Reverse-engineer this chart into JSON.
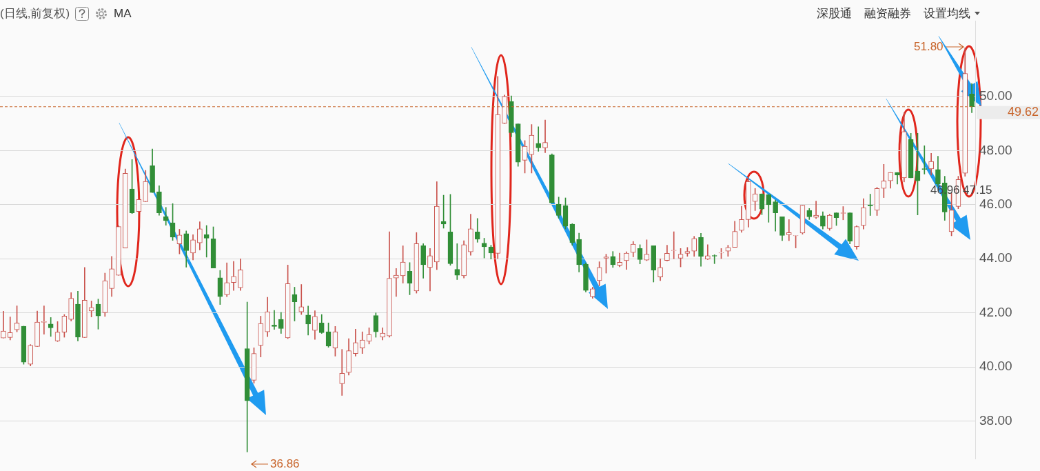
{
  "chart_data": {
    "type": "candlestick",
    "title": "(日线,前复权)",
    "categories": [
      null,
      null,
      null,
      null,
      null,
      null,
      null,
      null,
      null,
      null,
      null,
      null,
      null,
      null,
      null,
      null,
      null,
      null,
      null,
      null,
      null,
      null,
      null,
      null,
      null,
      null,
      null,
      null,
      null,
      null,
      null,
      null,
      null,
      null,
      null,
      null,
      null,
      null,
      null,
      null,
      null,
      null,
      null,
      null,
      null,
      null,
      null,
      null,
      null,
      null,
      null,
      null,
      null,
      null,
      null,
      null,
      null,
      null,
      null,
      null,
      null,
      null,
      null,
      null,
      null,
      null,
      null,
      null,
      null,
      null,
      null,
      null,
      null,
      null,
      null,
      null,
      null,
      null,
      null,
      null,
      null,
      null,
      null,
      null,
      null,
      null,
      null,
      null,
      null,
      null,
      null,
      null,
      null,
      null,
      null,
      null,
      null,
      null,
      null,
      null,
      null,
      null,
      null,
      null,
      null,
      null,
      null,
      null,
      null,
      null,
      null,
      null,
      null,
      null,
      null,
      null,
      null,
      null,
      null,
      null,
      null,
      null,
      null,
      null,
      null,
      null,
      null,
      null,
      null,
      null,
      null,
      null,
      null,
      null,
      null,
      null,
      null,
      null,
      null,
      null,
      null,
      null,
      null,
      null
    ],
    "ohlc": [
      [
        41.07,
        42.06,
        41.07,
        41.33
      ],
      [
        41.09,
        41.85,
        41.0,
        41.27
      ],
      [
        41.38,
        42.26,
        41.3,
        41.63
      ],
      [
        41.51,
        41.51,
        40.1,
        40.18
      ],
      [
        40.1,
        40.83,
        40.04,
        40.8
      ],
      [
        40.76,
        42.07,
        40.76,
        41.66
      ],
      [
        41.65,
        42.26,
        41.21,
        41.68
      ],
      [
        41.59,
        41.83,
        41.13,
        41.45
      ],
      [
        40.96,
        41.68,
        40.94,
        41.29
      ],
      [
        41.29,
        41.94,
        41.1,
        41.88
      ],
      [
        41.76,
        42.75,
        41.7,
        42.54
      ],
      [
        42.32,
        42.8,
        40.96,
        41.1
      ],
      [
        41.09,
        43.68,
        41.09,
        42.47
      ],
      [
        42.07,
        42.44,
        41.85,
        42.2
      ],
      [
        42.32,
        42.51,
        41.4,
        41.89
      ],
      [
        42.01,
        43.47,
        41.87,
        43.19
      ],
      [
        42.9,
        44.09,
        42.61,
        43.63
      ],
      [
        43.39,
        45.23,
        43.39,
        45.19
      ],
      [
        44.4,
        47.32,
        44.4,
        47.16
      ],
      [
        46.58,
        47.67,
        45.67,
        45.7
      ],
      [
        45.75,
        46.19,
        45.75,
        46.19
      ],
      [
        46.11,
        47.27,
        46.11,
        46.86
      ],
      [
        47.44,
        48.06,
        46.45,
        46.45
      ],
      [
        46.48,
        46.7,
        45.61,
        45.7
      ],
      [
        45.56,
        45.9,
        45.24,
        45.41
      ],
      [
        45.33,
        46.04,
        44.68,
        44.8
      ],
      [
        44.55,
        45.09,
        44.18,
        44.88
      ],
      [
        44.93,
        45.03,
        43.69,
        44.3
      ],
      [
        44.21,
        44.89,
        43.96,
        44.7
      ],
      [
        44.59,
        45.37,
        44.33,
        45.11
      ],
      [
        44.89,
        45.23,
        44.06,
        44.76
      ],
      [
        44.74,
        45.18,
        43.66,
        43.66
      ],
      [
        43.3,
        43.57,
        42.31,
        42.6
      ],
      [
        42.67,
        43.85,
        42.6,
        43.12
      ],
      [
        43.12,
        43.9,
        42.83,
        43.35
      ],
      [
        42.93,
        44.0,
        42.83,
        43.59
      ],
      [
        40.68,
        42.4,
        36.86,
        38.75
      ],
      [
        39.51,
        40.71,
        39.4,
        40.5
      ],
      [
        40.8,
        41.88,
        40.37,
        41.61
      ],
      [
        41.3,
        42.58,
        41.12,
        42.04
      ],
      [
        41.55,
        42.09,
        41.39,
        41.5
      ],
      [
        41.76,
        42.02,
        41.24,
        41.42
      ],
      [
        41.08,
        43.77,
        41.05,
        43.08
      ],
      [
        42.68,
        42.95,
        41.7,
        42.41
      ],
      [
        42.04,
        43.05,
        41.94,
        42.23
      ],
      [
        41.92,
        42.25,
        41.18,
        41.59
      ],
      [
        41.35,
        42.08,
        41.02,
        41.87
      ],
      [
        41.63,
        41.94,
        41.24,
        41.27
      ],
      [
        41.3,
        41.63,
        40.73,
        40.77
      ],
      [
        40.7,
        41.5,
        40.4,
        41.3
      ],
      [
        39.38,
        40.65,
        38.95,
        39.77
      ],
      [
        39.8,
        41.05,
        39.7,
        40.6
      ],
      [
        40.5,
        41.4,
        40.4,
        40.9
      ],
      [
        40.7,
        41.3,
        40.5,
        41.0
      ],
      [
        40.95,
        41.45,
        40.85,
        41.2
      ],
      [
        41.9,
        42.0,
        41.1,
        41.3
      ],
      [
        41.1,
        41.45,
        41.0,
        41.25
      ],
      [
        41.15,
        45.0,
        41.1,
        43.28
      ],
      [
        43.29,
        43.64,
        42.61,
        43.39
      ],
      [
        43.37,
        44.48,
        43.1,
        43.88
      ],
      [
        43.54,
        43.86,
        42.67,
        43.1
      ],
      [
        42.81,
        44.97,
        42.73,
        44.56
      ],
      [
        44.48,
        44.56,
        43.28,
        43.78
      ],
      [
        43.68,
        44.38,
        42.81,
        44.11
      ],
      [
        43.88,
        46.85,
        43.6,
        45.94
      ],
      [
        45.38,
        46.35,
        45.13,
        45.28
      ],
      [
        44.99,
        46.38,
        43.76,
        43.82
      ],
      [
        43.61,
        44.56,
        43.23,
        43.39
      ],
      [
        43.37,
        44.67,
        43.29,
        44.52
      ],
      [
        44.26,
        45.65,
        44.13,
        45.11
      ],
      [
        44.99,
        45.49,
        44.61,
        44.72
      ],
      [
        44.58,
        44.76,
        44.03,
        44.44
      ],
      [
        44.44,
        44.5,
        43.99,
        44.21
      ],
      [
        44.2,
        50.74,
        44.01,
        49.33
      ],
      [
        49.01,
        50.05,
        49.0,
        50.0
      ],
      [
        49.81,
        50.02,
        48.51,
        48.66
      ],
      [
        48.99,
        48.99,
        47.42,
        47.57
      ],
      [
        47.64,
        48.37,
        47.17,
        48.16
      ],
      [
        47.85,
        48.96,
        47.17,
        48.57
      ],
      [
        48.27,
        48.88,
        47.97,
        48.1
      ],
      [
        48.1,
        49.13,
        47.92,
        48.3
      ],
      [
        47.84,
        47.88,
        46.07,
        46.07
      ],
      [
        46.02,
        46.28,
        45.5,
        45.6
      ],
      [
        45.96,
        46.25,
        45.1,
        45.2
      ],
      [
        45.28,
        45.3,
        44.5,
        44.6
      ],
      [
        44.72,
        44.95,
        43.51,
        43.78
      ],
      [
        43.8,
        43.85,
        42.77,
        42.83
      ],
      [
        42.6,
        42.95,
        42.54,
        42.89
      ],
      [
        43.19,
        43.89,
        43.0,
        43.68
      ],
      [
        44.02,
        44.17,
        43.47,
        44.07
      ],
      [
        44.09,
        44.27,
        43.68,
        43.78
      ],
      [
        43.76,
        44.21,
        43.7,
        43.87
      ],
      [
        43.93,
        44.26,
        43.61,
        44.21
      ],
      [
        44.23,
        44.64,
        44.07,
        44.54
      ],
      [
        44.38,
        44.52,
        43.81,
        43.97
      ],
      [
        43.95,
        44.7,
        43.93,
        44.17
      ],
      [
        44.48,
        44.48,
        43.14,
        43.58
      ],
      [
        43.33,
        44.0,
        43.19,
        43.68
      ],
      [
        43.94,
        44.5,
        43.92,
        44.2
      ],
      [
        44.3,
        45.0,
        44.0,
        44.32
      ],
      [
        44.02,
        44.38,
        43.7,
        44.17
      ],
      [
        44.2,
        44.42,
        44.09,
        44.27
      ],
      [
        44.28,
        44.83,
        44.09,
        44.75
      ],
      [
        44.79,
        44.94,
        43.72,
        44.09
      ],
      [
        43.99,
        44.52,
        43.97,
        44.11
      ],
      [
        44.12,
        44.15,
        43.82,
        44.1
      ],
      [
        44.21,
        44.38,
        44.01,
        44.23
      ],
      [
        44.28,
        44.5,
        44.09,
        44.42
      ],
      [
        44.42,
        45.39,
        44.42,
        45.01
      ],
      [
        45.05,
        45.94,
        44.98,
        45.45
      ],
      [
        45.45,
        47.01,
        45.17,
        46.85
      ],
      [
        46.12,
        46.6,
        45.78,
        46.4
      ],
      [
        46.4,
        46.4,
        45.63,
        45.84
      ],
      [
        46.37,
        46.37,
        45.35,
        46.0
      ],
      [
        46.11,
        46.17,
        45.02,
        45.7
      ],
      [
        45.55,
        45.55,
        44.67,
        44.86
      ],
      [
        44.89,
        45.45,
        44.67,
        44.97
      ],
      [
        44.85,
        44.86,
        44.4,
        44.86
      ],
      [
        44.95,
        45.98,
        44.91,
        45.98
      ],
      [
        45.78,
        45.86,
        45.45,
        45.55
      ],
      [
        45.53,
        46.13,
        45.49,
        45.61
      ],
      [
        45.59,
        45.74,
        45.1,
        45.2
      ],
      [
        45.12,
        45.65,
        45.05,
        45.61
      ],
      [
        45.7,
        45.7,
        45.23,
        45.52
      ],
      [
        45.68,
        45.93,
        45.44,
        45.7
      ],
      [
        45.7,
        45.7,
        44.55,
        44.65
      ],
      [
        44.45,
        45.22,
        44.35,
        45.19
      ],
      [
        45.23,
        46.22,
        45.1,
        45.89
      ],
      [
        45.99,
        46.39,
        45.6,
        45.95
      ],
      [
        45.79,
        46.64,
        45.6,
        46.6
      ],
      [
        46.6,
        47.49,
        46.26,
        46.88
      ],
      [
        46.88,
        47.19,
        46.61,
        47.19
      ],
      [
        47.19,
        47.19,
        46.76,
        47.09
      ],
      [
        46.99,
        49.4,
        46.84,
        48.7
      ],
      [
        48.41,
        48.64,
        46.99,
        46.99
      ],
      [
        47.24,
        48.64,
        45.62,
        46.88
      ],
      [
        47.33,
        48.18,
        47.13,
        47.3
      ],
      [
        47.32,
        47.9,
        47.09,
        47.6
      ],
      [
        47.3,
        47.79,
        46.68,
        46.76
      ],
      [
        46.8,
        47.05,
        45.42,
        45.73
      ],
      [
        45.0,
        46.43,
        44.85,
        45.8
      ],
      [
        45.93,
        47.05,
        45.85,
        46.93
      ],
      [
        47.16,
        51.8,
        47.05,
        50.85
      ],
      [
        50.09,
        50.48,
        49.4,
        49.62
      ]
    ],
    "colors": [
      "#c9524c",
      "#c9524c",
      "#c9524c",
      "#318e37",
      "#c9524c",
      "#c9524c",
      "#c9524c",
      "#318e37",
      "#c9524c",
      "#c9524c",
      "#c9524c",
      "#318e37",
      "#c9524c",
      "#c9524c",
      "#318e37",
      "#c9524c",
      "#c9524c",
      "#c9524c",
      "#c9524c",
      "#318e37",
      "#c9524c",
      "#c9524c",
      "#318e37",
      "#318e37",
      "#318e37",
      "#318e37",
      "#c9524c",
      "#318e37",
      "#c9524c",
      "#c9524c",
      "#318e37",
      "#318e37",
      "#318e37",
      "#c9524c",
      "#c9524c",
      "#c9524c",
      "#318e37",
      "#c9524c",
      "#c9524c",
      "#c9524c",
      "#318e37",
      "#318e37",
      "#c9524c",
      "#318e37",
      "#c9524c",
      "#318e37",
      "#c9524c",
      "#318e37",
      "#318e37",
      "#c9524c",
      "#c9524c",
      "#c9524c",
      "#c9524c",
      "#c9524c",
      "#c9524c",
      "#318e37",
      "#c9524c",
      "#c9524c",
      "#c9524c",
      "#c9524c",
      "#318e37",
      "#c9524c",
      "#318e37",
      "#c9524c",
      "#c9524c",
      "#318e37",
      "#318e37",
      "#318e37",
      "#c9524c",
      "#c9524c",
      "#318e37",
      "#318e37",
      "#318e37",
      "#c9524c",
      "#c9524c",
      "#318e37",
      "#318e37",
      "#c9524c",
      "#c9524c",
      "#318e37",
      "#c9524c",
      "#318e37",
      "#318e37",
      "#318e37",
      "#318e37",
      "#318e37",
      "#318e37",
      "#c9524c",
      "#c9524c",
      "#c9524c",
      "#318e37",
      "#c9524c",
      "#c9524c",
      "#c9524c",
      "#318e37",
      "#c9524c",
      "#318e37",
      "#c9524c",
      "#c9524c",
      "#c9524c",
      "#c9524c",
      "#c9524c",
      "#c9524c",
      "#318e37",
      "#c9524c",
      "#318e37",
      "#c9524c",
      "#c9524c",
      "#c9524c",
      "#c9524c",
      "#c9524c",
      "#c9524c",
      "#318e37",
      "#318e37",
      "#318e37",
      "#318e37",
      "#c9524c",
      "#c9524c",
      "#c9524c",
      "#318e37",
      "#c9524c",
      "#318e37",
      "#c9524c",
      "#318e37",
      "#c9524c",
      "#318e37",
      "#c9524c",
      "#c9524c",
      "#318e37",
      "#c9524c",
      "#c9524c",
      "#c9524c",
      "#318e37",
      "#c9524c",
      "#318e37",
      "#318e37",
      "#318e37",
      "#c9524c",
      "#318e37",
      "#318e37",
      "#c9524c",
      "#c9524c",
      "#c9524c",
      "#318e37"
    ],
    "ylim": [
      36.6,
      52.8
    ],
    "yticks": [
      {
        "value": 38,
        "label": "38.00"
      },
      {
        "value": 40,
        "label": "40.00"
      },
      {
        "value": 42,
        "label": "42.00"
      },
      {
        "value": 44,
        "label": "44.00"
      },
      {
        "value": 46,
        "label": "46.00"
      },
      {
        "value": 48,
        "label": "48.00"
      },
      {
        "value": 50,
        "label": "50.00"
      }
    ],
    "tick_labels": "y",
    "grid": "y",
    "legend": false,
    "ref_lines": [
      {
        "axis": "y",
        "value": 49.62,
        "label": "49.62",
        "color": "#c8642a",
        "line_style": "dashed"
      }
    ],
    "annotations": [
      "MA",
      "深股通",
      "融资融券",
      "设置均线",
      "51.80",
      "36.86",
      "46.96",
      "47.15"
    ]
  }
}
